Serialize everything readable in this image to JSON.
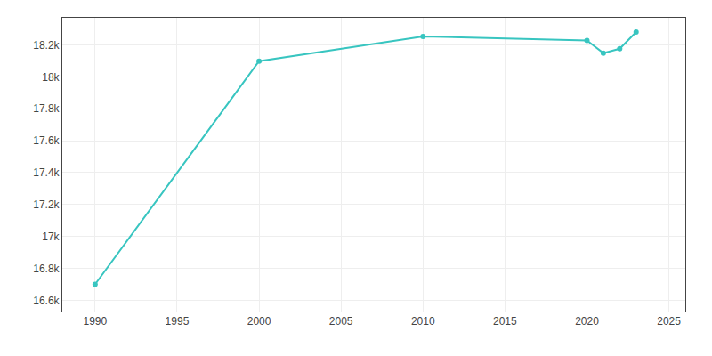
{
  "chart_data": {
    "type": "line",
    "x": [
      1990,
      2000,
      2010,
      2020,
      2021,
      2022,
      2023
    ],
    "values": [
      16700,
      18098,
      18253,
      18228,
      18149,
      18176,
      18281
    ],
    "color": "#38C5C0",
    "marker": "circle",
    "xlim": [
      1988,
      2026
    ],
    "xticks": [
      1990,
      1995,
      2000,
      2005,
      2010,
      2015,
      2020,
      2025
    ],
    "ylim": [
      16530,
      18370
    ],
    "yticks": [
      {
        "value": 16600,
        "label": "16.6k"
      },
      {
        "value": 16800,
        "label": "16.8k"
      },
      {
        "value": 17000,
        "label": "17k"
      },
      {
        "value": 17200,
        "label": "17.2k"
      },
      {
        "value": 17400,
        "label": "17.4k"
      },
      {
        "value": 17600,
        "label": "17.6k"
      },
      {
        "value": 17800,
        "label": "17.8k"
      },
      {
        "value": 18000,
        "label": "18k"
      },
      {
        "value": 18200,
        "label": "18.2k"
      }
    ],
    "grid": true
  }
}
